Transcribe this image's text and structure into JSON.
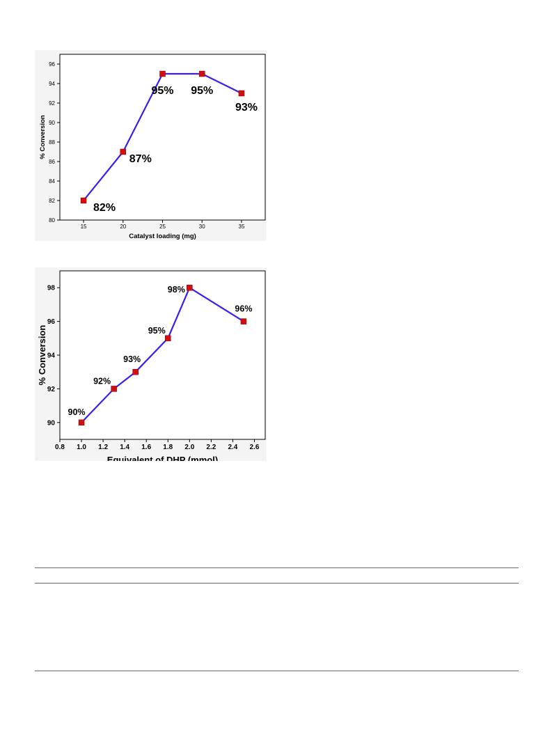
{
  "chart_data": [
    {
      "type": "line",
      "xlabel": "Catalyst loading (mg)",
      "ylabel": "% Conversion",
      "xlim": [
        12,
        38
      ],
      "ylim": [
        80,
        97
      ],
      "xticks": [
        15,
        20,
        25,
        30,
        35
      ],
      "yticks": [
        80,
        82,
        84,
        86,
        88,
        90,
        92,
        94,
        96
      ],
      "grid": false,
      "line_color": "#3a1ef0",
      "marker_color": "#d01010",
      "series": [
        {
          "x": [
            15,
            20,
            25,
            30,
            35
          ],
          "values": [
            82,
            87,
            95,
            95,
            93
          ],
          "labels": [
            "82%",
            "87%",
            "95%",
            "95%",
            "93%"
          ]
        }
      ]
    },
    {
      "type": "line",
      "xlabel": "Equivalent of DHP (mmol)",
      "ylabel": "% Conversion",
      "xlim": [
        0.8,
        2.7
      ],
      "ylim": [
        89,
        99
      ],
      "xticks": [
        0.8,
        1.0,
        1.2,
        1.4,
        1.6,
        1.8,
        2.0,
        2.2,
        2.4,
        2.6
      ],
      "yticks": [
        90,
        92,
        94,
        96,
        98
      ],
      "grid": false,
      "line_color": "#3a1ef0",
      "marker_color": "#d01010",
      "series": [
        {
          "x": [
            1.0,
            1.3,
            1.5,
            1.8,
            2.0,
            2.5
          ],
          "values": [
            90,
            92,
            93,
            95,
            98,
            96
          ],
          "labels": [
            "90%",
            "92%",
            "93%",
            "95%",
            "98%",
            "96%"
          ]
        }
      ]
    }
  ]
}
